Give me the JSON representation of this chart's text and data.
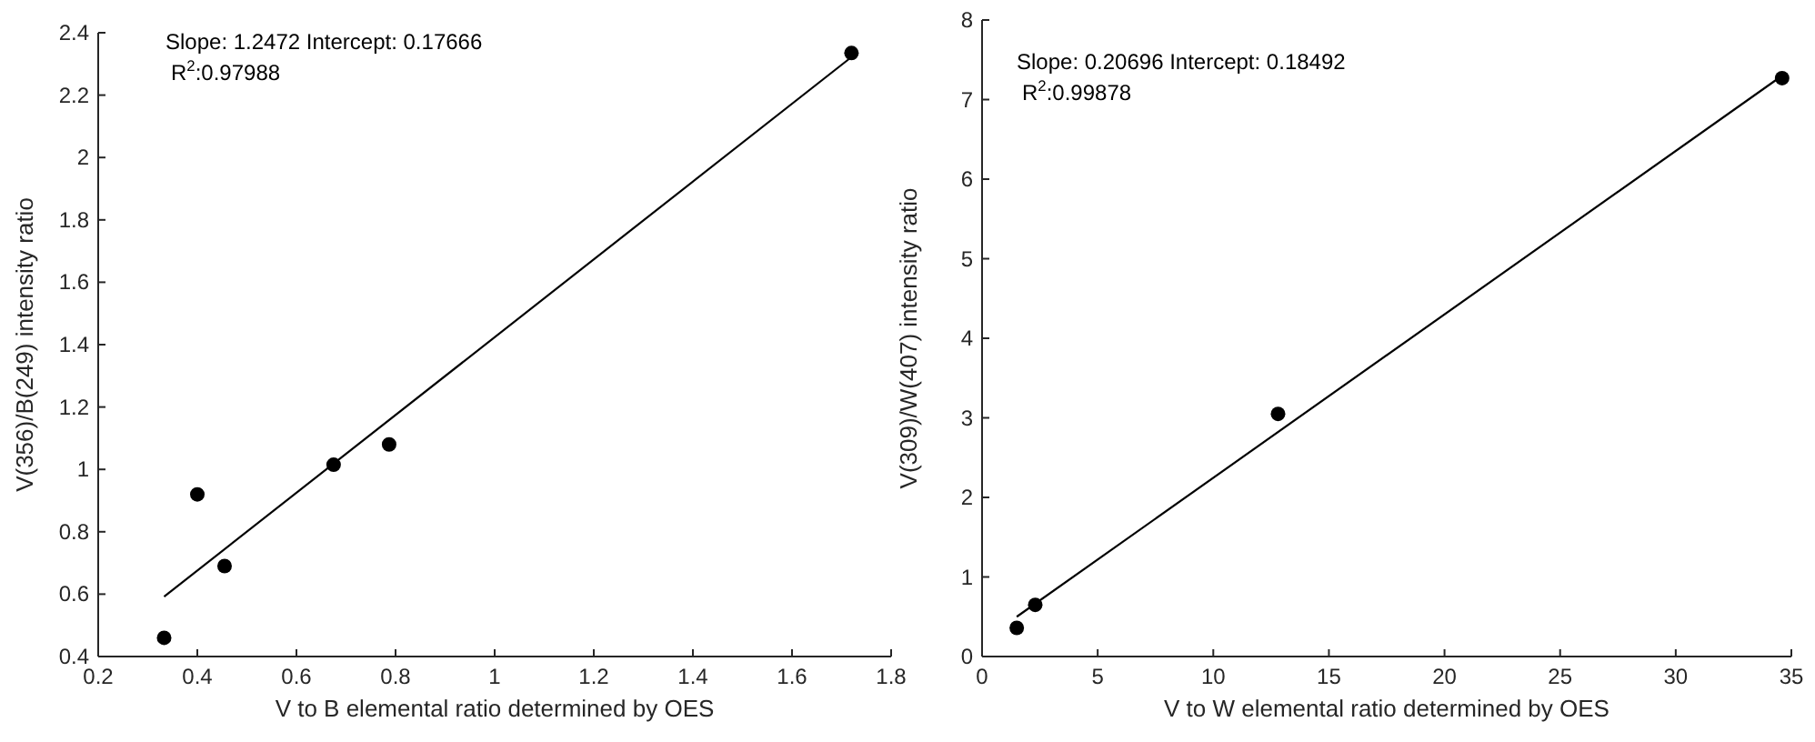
{
  "chart_data": [
    {
      "type": "scatter",
      "xlabel": "V to B elemental ratio determined by OES",
      "ylabel": "V(356)/B(249) intensity ratio",
      "annotations": [
        "Slope: 1.2472 Intercept: 0.17666",
        "R$^{2}$:0.97988"
      ],
      "xlim": [
        0.2,
        1.8
      ],
      "xticks": [
        0.2,
        0.4,
        0.6,
        0.8,
        1,
        1.2,
        1.4,
        1.6,
        1.8
      ],
      "ylim": [
        0.4,
        2.4
      ],
      "yticks": [
        0.4,
        0.6,
        0.8,
        1,
        1.2,
        1.4,
        1.6,
        1.8,
        2,
        2.2,
        2.4
      ],
      "grid": false,
      "marker": "circle",
      "series": [
        {
          "type": "scatter",
          "color": "#000000",
          "x": [
            0.333,
            0.4,
            0.455,
            0.675,
            0.787,
            1.72
          ],
          "values": [
            0.46,
            0.92,
            0.69,
            1.015,
            1.08,
            2.335
          ]
        },
        {
          "type": "line",
          "color": "#000000",
          "marker": "none",
          "line_style": "solid",
          "x": [
            0.333,
            1.72
          ],
          "values": [
            0.592,
            2.322
          ]
        }
      ]
    },
    {
      "type": "scatter",
      "xlabel": "V to W elemental ratio determined by OES",
      "ylabel": "V(309)/W(407) intensity ratio",
      "annotations": [
        "Slope: 0.20696 Intercept: 0.18492",
        "R$^{2}$:0.99878"
      ],
      "xlim": [
        0,
        35
      ],
      "xticks": [
        0,
        5,
        10,
        15,
        20,
        25,
        30,
        35
      ],
      "ylim": [
        0,
        8
      ],
      "yticks": [
        0,
        1,
        2,
        3,
        4,
        5,
        6,
        7,
        8
      ],
      "grid": false,
      "marker": "circle",
      "series": [
        {
          "type": "scatter",
          "color": "#000000",
          "x": [
            1.5,
            2.3,
            12.8,
            34.6
          ],
          "values": [
            0.36,
            0.65,
            3.05,
            7.27
          ]
        },
        {
          "type": "line",
          "color": "#000000",
          "marker": "none",
          "line_style": "solid",
          "x": [
            1.5,
            34.6
          ],
          "values": [
            0.5,
            7.3
          ]
        }
      ]
    }
  ]
}
